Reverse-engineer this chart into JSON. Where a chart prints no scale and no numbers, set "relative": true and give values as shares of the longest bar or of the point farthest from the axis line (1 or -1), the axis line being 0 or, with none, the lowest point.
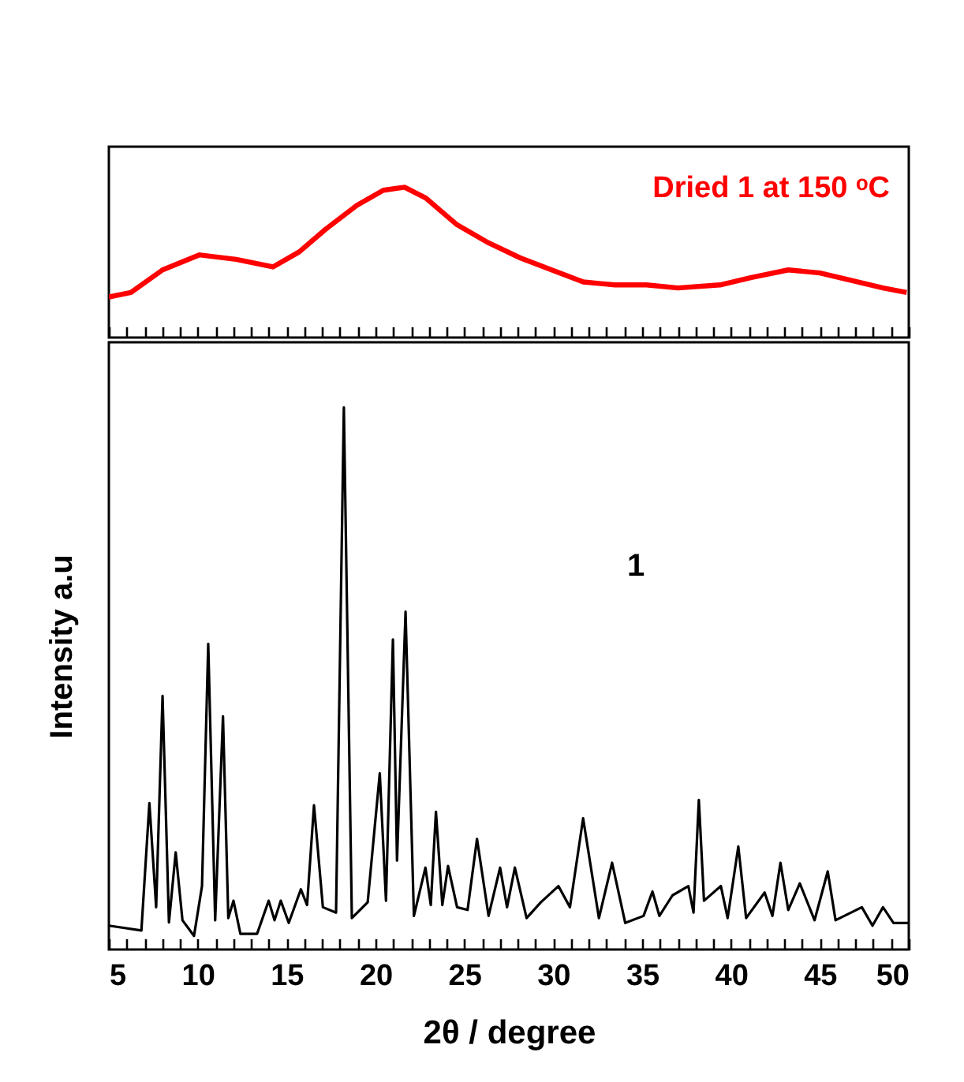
{
  "chart_data": [
    {
      "type": "line",
      "relative": true,
      "tick_labels": false,
      "xlim": [
        5,
        50
      ],
      "xticks": [
        5,
        {
          "value": 6,
          "label": null
        },
        {
          "value": 7,
          "label": null
        },
        {
          "value": 8,
          "label": null
        },
        {
          "value": 9,
          "label": null
        },
        10,
        {
          "value": 11,
          "label": null
        },
        {
          "value": 12,
          "label": null
        },
        {
          "value": 13,
          "label": null
        },
        {
          "value": 14,
          "label": null
        },
        15,
        {
          "value": 16,
          "label": null
        },
        {
          "value": 17,
          "label": null
        },
        {
          "value": 18,
          "label": null
        },
        {
          "value": 19,
          "label": null
        },
        20,
        {
          "value": 21,
          "label": null
        },
        {
          "value": 22,
          "label": null
        },
        {
          "value": 23,
          "label": null
        },
        {
          "value": 24,
          "label": null
        },
        25,
        {
          "value": 26,
          "label": null
        },
        {
          "value": 27,
          "label": null
        },
        {
          "value": 28,
          "label": null
        },
        {
          "value": 29,
          "label": null
        },
        30,
        {
          "value": 31,
          "label": null
        },
        {
          "value": 32,
          "label": null
        },
        {
          "value": 33,
          "label": null
        },
        {
          "value": 34,
          "label": null
        },
        35,
        {
          "value": 36,
          "label": null
        },
        {
          "value": 37,
          "label": null
        },
        {
          "value": 38,
          "label": null
        },
        {
          "value": 39,
          "label": null
        },
        40,
        {
          "value": 41,
          "label": null
        },
        {
          "value": 42,
          "label": null
        },
        {
          "value": 43,
          "label": null
        },
        {
          "value": 44,
          "label": null
        },
        45,
        {
          "value": 46,
          "label": null
        },
        {
          "value": 47,
          "label": null
        },
        {
          "value": 48,
          "label": null
        },
        {
          "value": 49,
          "label": null
        },
        50
      ],
      "x": [
        5.0,
        6.24,
        8.02,
        10.09,
        12.16,
        14.23,
        15.71,
        17.19,
        18.96,
        20.44,
        21.63,
        22.81,
        24.59,
        26.36,
        28.14,
        29.91,
        31.69,
        33.46,
        35.24,
        37.01,
        39.38,
        41.15,
        43.22,
        45.0,
        46.78,
        48.55,
        49.88
      ],
      "series": [
        {
          "name": "Dried 1 at 150 ᵒC",
          "color": "#ff0000",
          "values": [
            0.27,
            0.3,
            0.45,
            0.55,
            0.52,
            0.47,
            0.57,
            0.72,
            0.88,
            0.98,
            1.0,
            0.93,
            0.75,
            0.63,
            0.53,
            0.45,
            0.37,
            0.35,
            0.35,
            0.33,
            0.35,
            0.4,
            0.45,
            0.43,
            0.38,
            0.33,
            0.3
          ]
        }
      ]
    },
    {
      "type": "line",
      "relative": true,
      "tick_labels": "x",
      "xlabel": "2θ / degree",
      "ylabel": "Intensity a.u",
      "xlim": [
        5,
        50
      ],
      "xticks": [
        5,
        {
          "value": 6,
          "label": null
        },
        {
          "value": 7,
          "label": null
        },
        {
          "value": 8,
          "label": null
        },
        {
          "value": 9,
          "label": null
        },
        10,
        {
          "value": 11,
          "label": null
        },
        {
          "value": 12,
          "label": null
        },
        {
          "value": 13,
          "label": null
        },
        {
          "value": 14,
          "label": null
        },
        15,
        {
          "value": 16,
          "label": null
        },
        {
          "value": 17,
          "label": null
        },
        {
          "value": 18,
          "label": null
        },
        {
          "value": 19,
          "label": null
        },
        20,
        {
          "value": 21,
          "label": null
        },
        {
          "value": 22,
          "label": null
        },
        {
          "value": 23,
          "label": null
        },
        {
          "value": 24,
          "label": null
        },
        25,
        {
          "value": 26,
          "label": null
        },
        {
          "value": 27,
          "label": null
        },
        {
          "value": 28,
          "label": null
        },
        {
          "value": 29,
          "label": null
        },
        30,
        {
          "value": 31,
          "label": null
        },
        {
          "value": 32,
          "label": null
        },
        {
          "value": 33,
          "label": null
        },
        {
          "value": 34,
          "label": null
        },
        35,
        {
          "value": 36,
          "label": null
        },
        {
          "value": 37,
          "label": null
        },
        {
          "value": 38,
          "label": null
        },
        {
          "value": 39,
          "label": null
        },
        40,
        {
          "value": 41,
          "label": null
        },
        {
          "value": 42,
          "label": null
        },
        {
          "value": 43,
          "label": null
        },
        {
          "value": 44,
          "label": null
        },
        45,
        {
          "value": 46,
          "label": null
        },
        {
          "value": 47,
          "label": null
        },
        {
          "value": 48,
          "label": null
        },
        {
          "value": 49,
          "label": null
        },
        50
      ],
      "x": [
        5.0,
        6.83,
        7.28,
        7.66,
        8.02,
        8.38,
        8.76,
        9.14,
        9.79,
        10.24,
        10.59,
        10.98,
        11.42,
        11.72,
        12.01,
        12.4,
        13.34,
        13.99,
        14.32,
        14.67,
        15.12,
        15.8,
        16.15,
        16.54,
        17.04,
        17.78,
        18.22,
        18.67,
        19.56,
        20.24,
        20.59,
        20.98,
        21.21,
        21.69,
        22.16,
        22.81,
        23.11,
        23.4,
        23.76,
        24.08,
        24.59,
        25.18,
        25.71,
        26.36,
        27.01,
        27.4,
        27.84,
        28.5,
        29.3,
        30.29,
        30.94,
        31.68,
        32.57,
        33.31,
        34.05,
        35.08,
        35.58,
        35.97,
        36.71,
        37.6,
        37.89,
        38.19,
        38.48,
        39.43,
        39.81,
        40.41,
        40.85,
        41.89,
        42.33,
        42.78,
        43.22,
        43.87,
        44.7,
        45.44,
        45.88,
        47.36,
        47.96,
        48.55,
        49.14,
        50.0
      ],
      "series": [
        {
          "name": "1",
          "color": "#000000",
          "values": [
            0.044,
            0.035,
            0.27,
            0.078,
            0.468,
            0.05,
            0.179,
            0.054,
            0.025,
            0.117,
            0.564,
            0.054,
            0.43,
            0.058,
            0.09,
            0.029,
            0.029,
            0.09,
            0.054,
            0.09,
            0.049,
            0.111,
            0.082,
            0.266,
            0.078,
            0.068,
            1.0,
            0.058,
            0.087,
            0.325,
            0.09,
            0.572,
            0.164,
            0.623,
            0.062,
            0.151,
            0.082,
            0.254,
            0.082,
            0.154,
            0.078,
            0.073,
            0.204,
            0.062,
            0.151,
            0.078,
            0.151,
            0.058,
            0.087,
            0.117,
            0.078,
            0.242,
            0.058,
            0.16,
            0.049,
            0.062,
            0.107,
            0.062,
            0.1,
            0.117,
            0.068,
            0.276,
            0.09,
            0.117,
            0.058,
            0.19,
            0.058,
            0.105,
            0.062,
            0.16,
            0.073,
            0.122,
            0.054,
            0.144,
            0.054,
            0.078,
            0.044,
            0.078,
            0.049,
            0.049
          ]
        }
      ]
    }
  ]
}
